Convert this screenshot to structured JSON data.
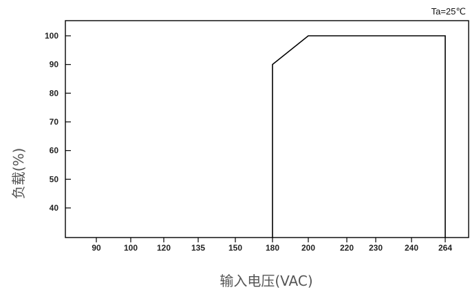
{
  "chart_data": {
    "type": "line",
    "annotation": "Ta=25℃",
    "xlabel": "输入电压(VAC)",
    "ylabel": "负载(%)",
    "categories": [
      "90",
      "100",
      "120",
      "135",
      "150",
      "180",
      "200",
      "220",
      "230",
      "240",
      "264"
    ],
    "y_ticks": [
      40,
      50,
      60,
      70,
      80,
      90,
      100
    ],
    "ylim": [
      30,
      105
    ],
    "grid": false,
    "series": [
      {
        "points": [
          {
            "x": "180",
            "y": 30
          },
          {
            "x": "180",
            "y": 90
          },
          {
            "x": "200",
            "y": 100
          },
          {
            "x": "264",
            "y": 100
          },
          {
            "x": "264",
            "y": 30
          }
        ]
      }
    ],
    "colors": {
      "line": "#000000",
      "frame": "#000000",
      "axis_title": "#555555"
    }
  }
}
